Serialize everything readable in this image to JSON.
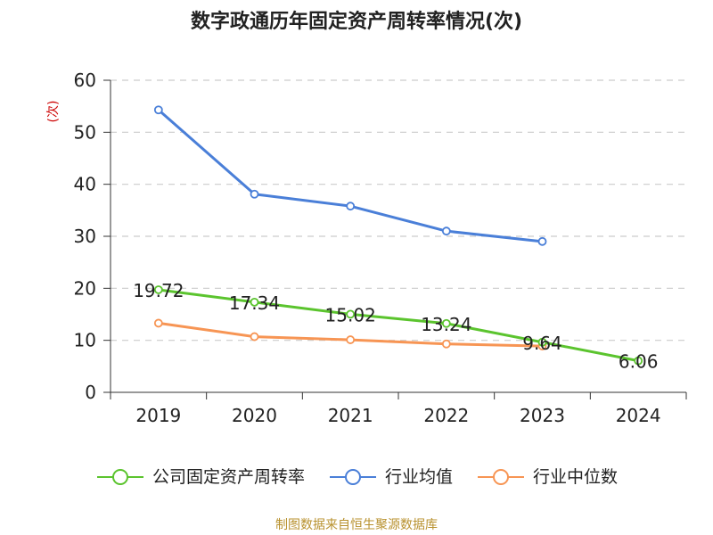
{
  "title": "数字政通历年固定资产周转率情况(次)",
  "source": "制图数据来自恒生聚源数据库",
  "chart_data": {
    "type": "line",
    "title": "数字政通历年固定资产周转率情况(次)",
    "ylabel": "(次)",
    "xlabel": "",
    "ylim": [
      0,
      60
    ],
    "yticks": [
      0,
      10,
      20,
      30,
      40,
      50,
      60
    ],
    "categories": [
      "2019",
      "2020",
      "2021",
      "2022",
      "2023",
      "2024"
    ],
    "grid": true,
    "legend_position": "bottom",
    "series": [
      {
        "name": "公司固定资产周转率",
        "color": "#5bc42e",
        "values": [
          19.72,
          17.34,
          15.02,
          13.24,
          9.64,
          6.06
        ],
        "labels": [
          "19.72",
          "17.34",
          "15.02",
          "13.24",
          "9.64",
          "6.06"
        ]
      },
      {
        "name": "行业均值",
        "color": "#4a7fd8",
        "values": [
          54.3,
          38.1,
          35.8,
          31.0,
          29.0,
          null
        ],
        "labels": []
      },
      {
        "name": "行业中位数",
        "color": "#f79554",
        "values": [
          13.3,
          10.7,
          10.1,
          9.3,
          8.9,
          null
        ],
        "labels": []
      }
    ]
  }
}
